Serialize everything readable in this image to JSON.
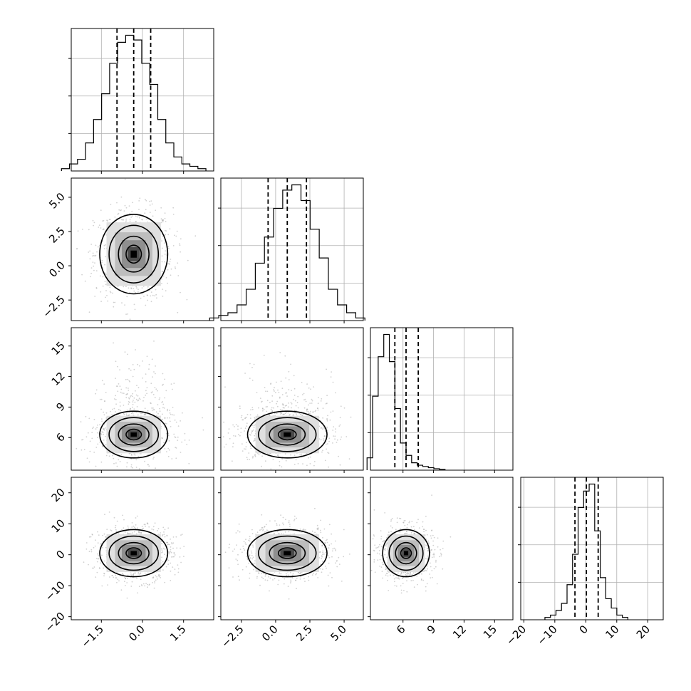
{
  "chart_data": {
    "type": "corner",
    "grid": true,
    "n_params": 4,
    "params": [
      {
        "range": [
          -2.6,
          2.6
        ],
        "ticks": [
          -1.5,
          0.0,
          1.5
        ],
        "tick_labels": [
          "−1.5",
          "0.0",
          "1.5"
        ],
        "quantiles": [
          -0.93,
          -0.32,
          0.3
        ]
      },
      {
        "range": [
          -4.0,
          6.4
        ],
        "ticks": [
          -2.5,
          0.0,
          2.5,
          5.0
        ],
        "tick_labels": [
          "−2.5",
          "0.0",
          "2.5",
          "5.0"
        ],
        "quantiles": [
          -0.55,
          0.85,
          2.25
        ]
      },
      {
        "range": [
          2.8,
          16.8
        ],
        "ticks": [
          6,
          9,
          12,
          15
        ],
        "tick_labels": [
          "6",
          "9",
          "12",
          "15"
        ],
        "quantiles": [
          5.2,
          6.3,
          7.5
        ]
      },
      {
        "range": [
          -21,
          25
        ],
        "ticks": [
          -20,
          -10,
          0,
          10,
          20
        ],
        "tick_labels": [
          "−20",
          "−10",
          "0",
          "10",
          "20"
        ],
        "quantiles": [
          -3.5,
          0.2,
          4.0
        ]
      }
    ],
    "histograms": [
      {
        "counts": [
          1,
          3,
          5,
          12,
          22,
          33,
          46,
          55,
          58,
          56,
          46,
          37,
          22,
          12,
          6,
          3,
          2,
          1
        ]
      },
      {
        "counts": [
          1,
          2,
          3,
          6,
          12,
          22,
          32,
          43,
          50,
          52,
          46,
          35,
          24,
          12,
          6,
          3,
          1
        ]
      },
      {
        "counts": [
          5,
          30,
          46,
          55,
          44,
          25,
          11,
          6,
          3,
          2,
          1.5,
          1,
          0.6,
          0.3
        ]
      },
      {
        "counts": [
          1,
          2,
          4,
          7,
          15,
          28,
          48,
          55,
          58,
          38,
          18,
          9,
          5,
          2,
          1
        ]
      }
    ],
    "pairs": [
      {
        "i": 1,
        "j": 0,
        "mean": [
          -0.32,
          0.85
        ],
        "sd": [
          0.62,
          1.45
        ]
      },
      {
        "i": 2,
        "j": 0,
        "mean": [
          -0.32,
          6.3
        ],
        "sd": [
          0.62,
          1.15
        ]
      },
      {
        "i": 2,
        "j": 1,
        "mean": [
          0.85,
          6.3
        ],
        "sd": [
          1.45,
          1.15
        ]
      },
      {
        "i": 3,
        "j": 0,
        "mean": [
          -0.32,
          0.5
        ],
        "sd": [
          0.62,
          3.8
        ]
      },
      {
        "i": 3,
        "j": 1,
        "mean": [
          0.85,
          0.5
        ],
        "sd": [
          1.45,
          3.8
        ]
      },
      {
        "i": 3,
        "j": 2,
        "mean": [
          6.3,
          0.5
        ],
        "sd": [
          1.15,
          3.8
        ]
      }
    ]
  }
}
